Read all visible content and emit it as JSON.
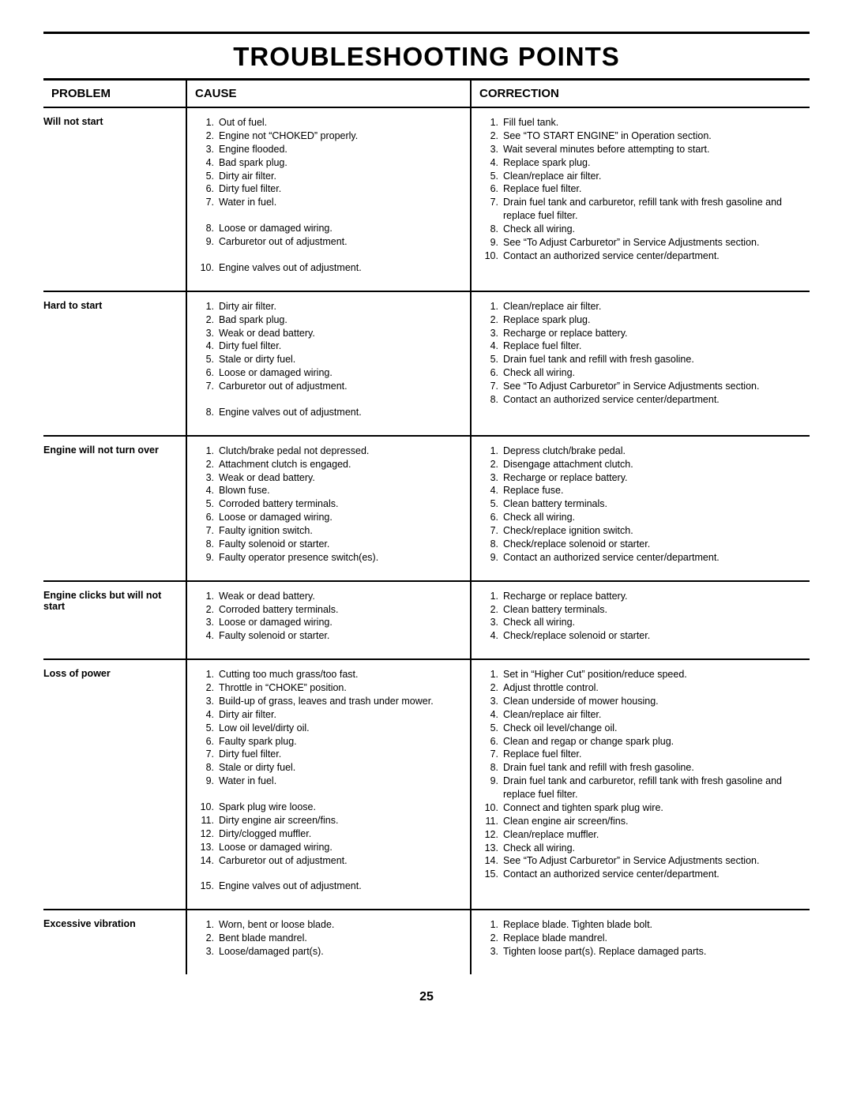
{
  "title": "TROUBLESHOOTING POINTS",
  "pageNumber": "25",
  "headers": {
    "problem": "PROBLEM",
    "cause": "CAUSE",
    "correction": "CORRECTION"
  },
  "sections": [
    {
      "problem": "Will not start",
      "causes": [
        {
          "t": "Out of fuel."
        },
        {
          "t": "Engine not “CHOKED” properly."
        },
        {
          "t": "Engine flooded."
        },
        {
          "t": "Bad spark plug."
        },
        {
          "t": "Dirty air filter."
        },
        {
          "t": "Dirty fuel filter."
        },
        {
          "t": "Water in fuel."
        },
        {
          "t": "Loose or damaged wiring.",
          "gap": true
        },
        {
          "t": "Carburetor out of adjustment."
        },
        {
          "t": "Engine valves out of adjustment.",
          "gap": true
        }
      ],
      "corrections": [
        {
          "t": "Fill fuel tank."
        },
        {
          "t": "See “TO START ENGINE” in Operation section."
        },
        {
          "t": "Wait several minutes before attempting to start."
        },
        {
          "t": "Replace spark plug."
        },
        {
          "t": "Clean/replace air filter."
        },
        {
          "t": "Replace fuel filter."
        },
        {
          "t": "Drain fuel tank and carburetor, refill tank with fresh gasoline and replace fuel filter."
        },
        {
          "t": "Check all wiring."
        },
        {
          "t": "See “To Adjust Carburetor” in Service Adjustments section."
        },
        {
          "t": "Contact an authorized service center/department."
        }
      ]
    },
    {
      "problem": "Hard to start",
      "causes": [
        {
          "t": "Dirty air filter."
        },
        {
          "t": "Bad spark plug."
        },
        {
          "t": "Weak or dead battery."
        },
        {
          "t": "Dirty fuel filter."
        },
        {
          "t": "Stale or dirty fuel."
        },
        {
          "t": "Loose or damaged wiring."
        },
        {
          "t": "Carburetor out of adjustment."
        },
        {
          "t": "Engine valves out of adjustment.",
          "gap": true
        }
      ],
      "corrections": [
        {
          "t": "Clean/replace air filter."
        },
        {
          "t": "Replace spark plug."
        },
        {
          "t": "Recharge or replace battery."
        },
        {
          "t": "Replace fuel filter."
        },
        {
          "t": "Drain fuel tank and refill with fresh gasoline."
        },
        {
          "t": "Check all wiring."
        },
        {
          "t": "See “To Adjust Carburetor” in Service Adjustments section."
        },
        {
          "t": "Contact an authorized service center/department."
        }
      ]
    },
    {
      "problem": "Engine will not turn over",
      "causes": [
        {
          "t": "Clutch/brake pedal not depressed."
        },
        {
          "t": "Attachment clutch is engaged."
        },
        {
          "t": "Weak or dead battery."
        },
        {
          "t": "Blown fuse."
        },
        {
          "t": "Corroded battery terminals."
        },
        {
          "t": "Loose or damaged wiring."
        },
        {
          "t": "Faulty ignition switch."
        },
        {
          "t": "Faulty solenoid or starter."
        },
        {
          "t": "Faulty operator presence switch(es)."
        }
      ],
      "corrections": [
        {
          "t": "Depress clutch/brake pedal."
        },
        {
          "t": "Disengage attachment clutch."
        },
        {
          "t": "Recharge or replace battery."
        },
        {
          "t": "Replace fuse."
        },
        {
          "t": "Clean battery terminals."
        },
        {
          "t": "Check all wiring."
        },
        {
          "t": "Check/replace ignition switch."
        },
        {
          "t": "Check/replace solenoid or starter."
        },
        {
          "t": "Contact an authorized service center/department."
        }
      ]
    },
    {
      "problem": "Engine clicks but will not start",
      "causes": [
        {
          "t": "Weak or dead battery."
        },
        {
          "t": "Corroded battery terminals."
        },
        {
          "t": "Loose or damaged wiring."
        },
        {
          "t": "Faulty solenoid or starter."
        }
      ],
      "corrections": [
        {
          "t": "Recharge or replace battery."
        },
        {
          "t": "Clean battery terminals."
        },
        {
          "t": "Check all wiring."
        },
        {
          "t": "Check/replace solenoid or starter."
        }
      ]
    },
    {
      "problem": "Loss of power",
      "causes": [
        {
          "t": "Cutting too much grass/too fast."
        },
        {
          "t": "Throttle in “CHOKE” position."
        },
        {
          "t": "Build-up of grass, leaves and trash under mower."
        },
        {
          "t": "Dirty air filter."
        },
        {
          "t": "Low oil level/dirty oil."
        },
        {
          "t": "Faulty spark plug."
        },
        {
          "t": "Dirty fuel filter."
        },
        {
          "t": "Stale or dirty fuel."
        },
        {
          "t": "Water in fuel."
        },
        {
          "t": "Spark plug wire loose.",
          "gap": true
        },
        {
          "t": "Dirty engine air screen/fins."
        },
        {
          "t": "Dirty/clogged muffler."
        },
        {
          "t": "Loose or damaged wiring."
        },
        {
          "t": "Carburetor out of adjustment."
        },
        {
          "t": "Engine valves out of adjustment.",
          "gap": true
        }
      ],
      "corrections": [
        {
          "t": "Set in “Higher Cut” position/reduce speed."
        },
        {
          "t": "Adjust throttle control."
        },
        {
          "t": "Clean underside of mower housing."
        },
        {
          "t": "Clean/replace air filter."
        },
        {
          "t": "Check oil level/change oil."
        },
        {
          "t": "Clean and regap or change spark plug."
        },
        {
          "t": "Replace fuel filter."
        },
        {
          "t": "Drain fuel tank and refill with fresh gasoline."
        },
        {
          "t": "Drain fuel tank and carburetor, refill tank with fresh gasoline and replace fuel filter."
        },
        {
          "t": "Connect and tighten spark plug wire."
        },
        {
          "t": "Clean engine air screen/fins."
        },
        {
          "t": "Clean/replace muffler."
        },
        {
          "t": "Check all wiring."
        },
        {
          "t": "See “To Adjust Carburetor” in Service Adjustments section."
        },
        {
          "t": "Contact an authorized service center/department."
        }
      ]
    },
    {
      "problem": "Excessive vibration",
      "causes": [
        {
          "t": "Worn, bent or loose blade."
        },
        {
          "t": "Bent blade mandrel."
        },
        {
          "t": "Loose/damaged part(s)."
        }
      ],
      "corrections": [
        {
          "t": "Replace blade.  Tighten blade bolt."
        },
        {
          "t": "Replace blade mandrel."
        },
        {
          "t": "Tighten loose part(s).  Replace damaged parts."
        }
      ]
    }
  ]
}
